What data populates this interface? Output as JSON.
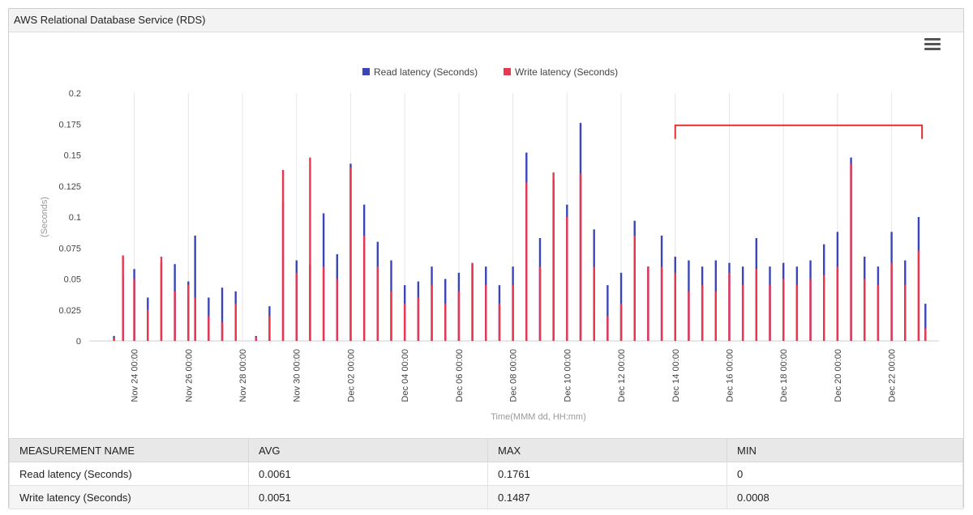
{
  "panel": {
    "title": "AWS Relational Database Service (RDS)"
  },
  "menu_icon": "hamburger-menu-icon",
  "colors": {
    "read": "#3a46b8",
    "write": "#e8374f",
    "annotation": "#e03030",
    "grid": "#e6e6e6"
  },
  "chart_data": {
    "type": "bar",
    "ylabel": "(Seconds)",
    "xlabel": "Time(MMM dd, HH:mm)",
    "ylim": [
      0,
      0.2
    ],
    "yticks": [
      "0.2",
      "0.175",
      "0.15",
      "0.125",
      "0.1",
      "0.075",
      "0.05",
      "0.025",
      "0"
    ],
    "xticks": [
      "Nov 24 00:00",
      "Nov 26 00:00",
      "Nov 28 00:00",
      "Nov 30 00:00",
      "Dec 02 00:00",
      "Dec 04 00:00",
      "Dec 06 00:00",
      "Dec 08 00:00",
      "Dec 10 00:00",
      "Dec 12 00:00",
      "Dec 14 00:00",
      "Dec 16 00:00",
      "Dec 18 00:00",
      "Dec 20 00:00",
      "Dec 22 00:00"
    ],
    "grid": true,
    "legend": "top-center",
    "series": [
      {
        "name": "Read latency (Seconds)",
        "points": [
          [
            "Nov 23 06:00",
            0.004
          ],
          [
            "Nov 23 14:00",
            0.052
          ],
          [
            "Nov 24 00:00",
            0.058
          ],
          [
            "Nov 24 12:00",
            0.035
          ],
          [
            "Nov 25 00:00",
            0.063
          ],
          [
            "Nov 25 12:00",
            0.062
          ],
          [
            "Nov 26 00:00",
            0.048
          ],
          [
            "Nov 26 06:00",
            0.085
          ],
          [
            "Nov 26 18:00",
            0.035
          ],
          [
            "Nov 27 06:00",
            0.043
          ],
          [
            "Nov 27 18:00",
            0.04
          ],
          [
            "Nov 28 12:00",
            0.004
          ],
          [
            "Nov 29 00:00",
            0.028
          ],
          [
            "Nov 29 12:00",
            0.112
          ],
          [
            "Nov 30 00:00",
            0.065
          ],
          [
            "Nov 30 12:00",
            0.062
          ],
          [
            "Dec 01 00:00",
            0.103
          ],
          [
            "Dec 01 12:00",
            0.07
          ],
          [
            "Dec 02 00:00",
            0.143
          ],
          [
            "Dec 02 12:00",
            0.11
          ],
          [
            "Dec 03 00:00",
            0.08
          ],
          [
            "Dec 03 12:00",
            0.065
          ],
          [
            "Dec 04 00:00",
            0.045
          ],
          [
            "Dec 04 12:00",
            0.048
          ],
          [
            "Dec 05 00:00",
            0.06
          ],
          [
            "Dec 05 12:00",
            0.05
          ],
          [
            "Dec 06 00:00",
            0.055
          ],
          [
            "Dec 06 12:00",
            0.062
          ],
          [
            "Dec 07 00:00",
            0.06
          ],
          [
            "Dec 07 12:00",
            0.045
          ],
          [
            "Dec 08 00:00",
            0.06
          ],
          [
            "Dec 08 12:00",
            0.152
          ],
          [
            "Dec 09 00:00",
            0.083
          ],
          [
            "Dec 09 12:00",
            0.13
          ],
          [
            "Dec 10 00:00",
            0.11
          ],
          [
            "Dec 10 12:00",
            0.176
          ],
          [
            "Dec 11 00:00",
            0.09
          ],
          [
            "Dec 11 12:00",
            0.045
          ],
          [
            "Dec 12 00:00",
            0.055
          ],
          [
            "Dec 12 12:00",
            0.097
          ],
          [
            "Dec 13 00:00",
            0.06
          ],
          [
            "Dec 13 12:00",
            0.085
          ],
          [
            "Dec 14 00:00",
            0.068
          ],
          [
            "Dec 14 12:00",
            0.065
          ],
          [
            "Dec 15 00:00",
            0.06
          ],
          [
            "Dec 15 12:00",
            0.065
          ],
          [
            "Dec 16 00:00",
            0.063
          ],
          [
            "Dec 16 12:00",
            0.06
          ],
          [
            "Dec 17 00:00",
            0.083
          ],
          [
            "Dec 17 12:00",
            0.06
          ],
          [
            "Dec 18 00:00",
            0.063
          ],
          [
            "Dec 18 12:00",
            0.06
          ],
          [
            "Dec 19 00:00",
            0.065
          ],
          [
            "Dec 19 12:00",
            0.078
          ],
          [
            "Dec 20 00:00",
            0.088
          ],
          [
            "Dec 20 12:00",
            0.148
          ],
          [
            "Dec 21 00:00",
            0.068
          ],
          [
            "Dec 21 12:00",
            0.06
          ],
          [
            "Dec 22 00:00",
            0.088
          ],
          [
            "Dec 22 12:00",
            0.065
          ],
          [
            "Dec 23 00:00",
            0.1
          ],
          [
            "Dec 23 06:00",
            0.03
          ]
        ]
      },
      {
        "name": "Write latency (Seconds)",
        "points": [
          [
            "Nov 23 06:00",
            0.002
          ],
          [
            "Nov 23 14:00",
            0.069
          ],
          [
            "Nov 24 00:00",
            0.05
          ],
          [
            "Nov 24 12:00",
            0.025
          ],
          [
            "Nov 25 00:00",
            0.068
          ],
          [
            "Nov 25 12:00",
            0.04
          ],
          [
            "Nov 26 00:00",
            0.045
          ],
          [
            "Nov 26 06:00",
            0.035
          ],
          [
            "Nov 26 18:00",
            0.02
          ],
          [
            "Nov 27 06:00",
            0.015
          ],
          [
            "Nov 27 18:00",
            0.03
          ],
          [
            "Nov 28 12:00",
            0.003
          ],
          [
            "Nov 29 00:00",
            0.02
          ],
          [
            "Nov 29 12:00",
            0.138
          ],
          [
            "Nov 30 00:00",
            0.055
          ],
          [
            "Nov 30 12:00",
            0.148
          ],
          [
            "Dec 01 00:00",
            0.06
          ],
          [
            "Dec 01 12:00",
            0.05
          ],
          [
            "Dec 02 00:00",
            0.14
          ],
          [
            "Dec 02 12:00",
            0.085
          ],
          [
            "Dec 03 00:00",
            0.06
          ],
          [
            "Dec 03 12:00",
            0.04
          ],
          [
            "Dec 04 00:00",
            0.03
          ],
          [
            "Dec 04 12:00",
            0.035
          ],
          [
            "Dec 05 00:00",
            0.045
          ],
          [
            "Dec 05 12:00",
            0.03
          ],
          [
            "Dec 06 00:00",
            0.04
          ],
          [
            "Dec 06 12:00",
            0.063
          ],
          [
            "Dec 07 00:00",
            0.045
          ],
          [
            "Dec 07 12:00",
            0.03
          ],
          [
            "Dec 08 00:00",
            0.045
          ],
          [
            "Dec 08 12:00",
            0.128
          ],
          [
            "Dec 09 00:00",
            0.06
          ],
          [
            "Dec 09 12:00",
            0.136
          ],
          [
            "Dec 10 00:00",
            0.1
          ],
          [
            "Dec 10 12:00",
            0.135
          ],
          [
            "Dec 11 00:00",
            0.06
          ],
          [
            "Dec 11 12:00",
            0.02
          ],
          [
            "Dec 12 00:00",
            0.03
          ],
          [
            "Dec 12 12:00",
            0.085
          ],
          [
            "Dec 13 00:00",
            0.06
          ],
          [
            "Dec 13 12:00",
            0.06
          ],
          [
            "Dec 14 00:00",
            0.055
          ],
          [
            "Dec 14 12:00",
            0.04
          ],
          [
            "Dec 15 00:00",
            0.045
          ],
          [
            "Dec 15 12:00",
            0.04
          ],
          [
            "Dec 16 00:00",
            0.055
          ],
          [
            "Dec 16 12:00",
            0.045
          ],
          [
            "Dec 17 00:00",
            0.058
          ],
          [
            "Dec 17 12:00",
            0.045
          ],
          [
            "Dec 18 00:00",
            0.05
          ],
          [
            "Dec 18 12:00",
            0.045
          ],
          [
            "Dec 19 00:00",
            0.05
          ],
          [
            "Dec 19 12:00",
            0.053
          ],
          [
            "Dec 20 00:00",
            0.06
          ],
          [
            "Dec 20 12:00",
            0.143
          ],
          [
            "Dec 21 00:00",
            0.05
          ],
          [
            "Dec 21 12:00",
            0.045
          ],
          [
            "Dec 22 00:00",
            0.063
          ],
          [
            "Dec 22 12:00",
            0.045
          ],
          [
            "Dec 23 00:00",
            0.073
          ],
          [
            "Dec 23 06:00",
            0.01
          ]
        ]
      }
    ]
  },
  "table": {
    "headers": [
      "MEASUREMENT NAME",
      "AVG",
      "MAX",
      "MIN"
    ],
    "rows": [
      {
        "name": "Read latency (Seconds)",
        "avg": "0.0061",
        "max": "0.1761",
        "min": "0"
      },
      {
        "name": "Write latency (Seconds)",
        "avg": "0.0051",
        "max": "0.1487",
        "min": "0.0008"
      }
    ]
  }
}
